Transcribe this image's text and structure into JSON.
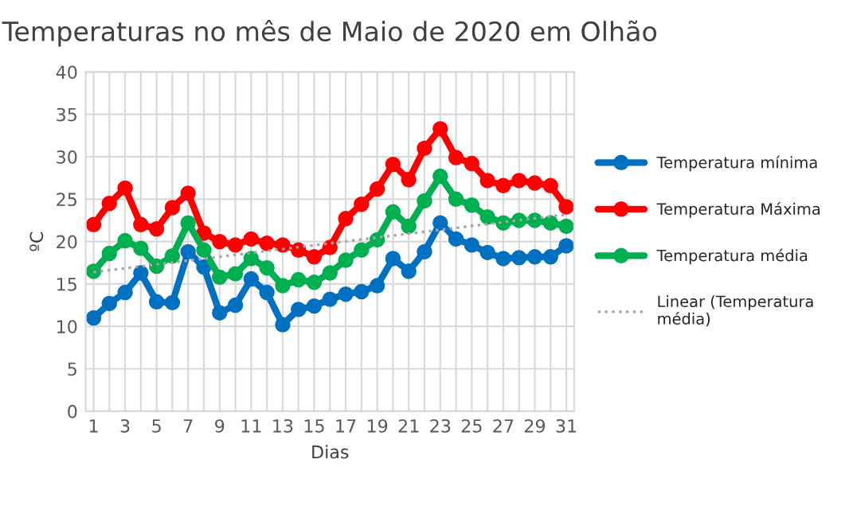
{
  "chart_data": {
    "type": "line",
    "title": "Temperaturas no mês de Maio de 2020 em Olhão",
    "xlabel": "Dias",
    "ylabel": "ºC",
    "x": [
      1,
      2,
      3,
      4,
      5,
      6,
      7,
      8,
      9,
      10,
      11,
      12,
      13,
      14,
      15,
      16,
      17,
      18,
      19,
      20,
      21,
      22,
      23,
      24,
      25,
      26,
      27,
      28,
      29,
      30,
      31
    ],
    "series": [
      {
        "name": "Temperatura mínima",
        "color": "#0070c0",
        "values": [
          11,
          12.7,
          14,
          16.3,
          12.9,
          12.8,
          18.8,
          17,
          11.6,
          12.5,
          15.6,
          14,
          10.2,
          12,
          12.4,
          13.2,
          13.8,
          14.1,
          14.8,
          18,
          16.5,
          18.8,
          22.2,
          20.3,
          19.6,
          18.7,
          18,
          18.1,
          18.2,
          18.2,
          19.5
        ]
      },
      {
        "name": "Temperatura Máxima",
        "color": "#ff0000",
        "values": [
          22,
          24.5,
          26.3,
          22,
          21.5,
          24,
          25.7,
          21,
          20,
          19.6,
          20.3,
          19.8,
          19.6,
          19,
          18.2,
          19.3,
          22.7,
          24.4,
          26.2,
          29.1,
          27.3,
          31,
          33.3,
          29.9,
          29.2,
          27.2,
          26.6,
          27.2,
          26.9,
          26.6,
          24.1
        ]
      },
      {
        "name": "Temperatura média",
        "color": "#00b050",
        "values": [
          16.5,
          18.6,
          20.1,
          19.2,
          17.1,
          18.3,
          22.2,
          19,
          15.8,
          16.2,
          18,
          16.9,
          14.8,
          15.5,
          15.2,
          16.3,
          17.8,
          19,
          20.2,
          23.5,
          21.8,
          24.8,
          27.7,
          25,
          24.3,
          22.9,
          22.2,
          22.5,
          22.5,
          22.2,
          21.8
        ]
      },
      {
        "name": "Linear (Temperatura média)",
        "color": "#a6a6a6",
        "x": [
          1,
          31
        ],
        "values": [
          16.4,
          23.2
        ],
        "marker": "none",
        "line_style": "dotted"
      }
    ],
    "marker": "circle",
    "line_style": "solid",
    "xlim": [
      0.5,
      31.5
    ],
    "xticks": [
      1,
      {
        "value": 2,
        "label": null
      },
      3,
      {
        "value": 4,
        "label": null
      },
      5,
      {
        "value": 6,
        "label": null
      },
      7,
      {
        "value": 8,
        "label": null
      },
      9,
      {
        "value": 10,
        "label": null
      },
      11,
      {
        "value": 12,
        "label": null
      },
      13,
      {
        "value": 14,
        "label": null
      },
      15,
      {
        "value": 16,
        "label": null
      },
      17,
      {
        "value": 18,
        "label": null
      },
      19,
      {
        "value": 20,
        "label": null
      },
      21,
      {
        "value": 22,
        "label": null
      },
      23,
      {
        "value": 24,
        "label": null
      },
      25,
      {
        "value": 26,
        "label": null
      },
      27,
      {
        "value": 28,
        "label": null
      },
      29,
      {
        "value": 30,
        "label": null
      },
      31
    ],
    "ylim": [
      0,
      40
    ],
    "yticks": [
      0,
      5,
      10,
      15,
      20,
      25,
      30,
      35,
      40
    ],
    "grid": true,
    "legend": "right"
  }
}
